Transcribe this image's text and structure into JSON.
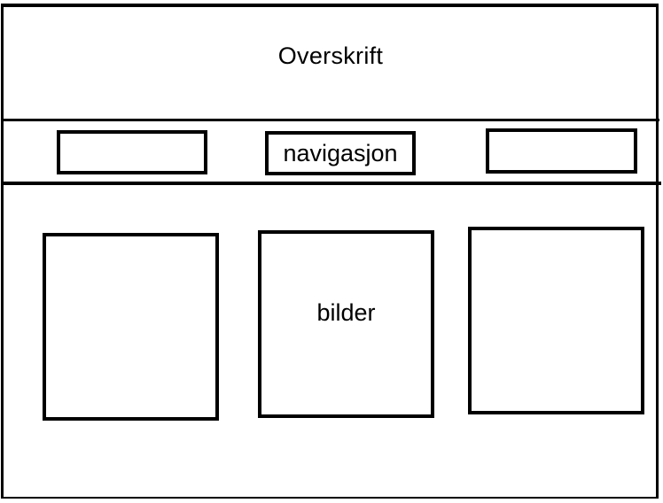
{
  "header": {
    "title": "Overskrift"
  },
  "navigation": {
    "label": "navigasjon",
    "items": [
      "",
      "navigasjon",
      ""
    ]
  },
  "gallery": {
    "label": "bilder",
    "images": [
      "",
      "bilder",
      ""
    ]
  }
}
